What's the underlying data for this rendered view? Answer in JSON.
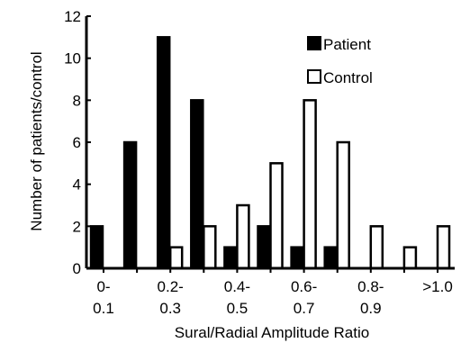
{
  "chart_data": {
    "type": "bar",
    "categories": [
      [
        "0-",
        "0.1"
      ],
      [
        "",
        ""
      ],
      [
        "0.2-",
        "0.3"
      ],
      [
        "",
        ""
      ],
      [
        "0.4-",
        "0.5"
      ],
      [
        "",
        ""
      ],
      [
        "0.6-",
        "0.7"
      ],
      [
        "",
        ""
      ],
      [
        "0.8-",
        "0.9"
      ],
      [
        "",
        ""
      ],
      [
        ">1.0",
        ""
      ]
    ],
    "series": [
      {
        "name": "Patient",
        "values": [
          2,
          6,
          11,
          8,
          1,
          2,
          1,
          1,
          0,
          0,
          0
        ],
        "fill": "#000000"
      },
      {
        "name": "Control",
        "values": [
          0,
          0,
          1,
          2,
          3,
          5,
          8,
          6,
          2,
          1,
          2
        ],
        "fill": "#ffffff"
      }
    ],
    "ylim": [
      0,
      12
    ],
    "yticks": [
      0,
      2,
      4,
      6,
      8,
      10,
      12
    ],
    "ylabel": "Number of patients/control",
    "xlabel": "Sural/Radial Amplitude Ratio",
    "legend_position": "top-right",
    "grid": false
  }
}
